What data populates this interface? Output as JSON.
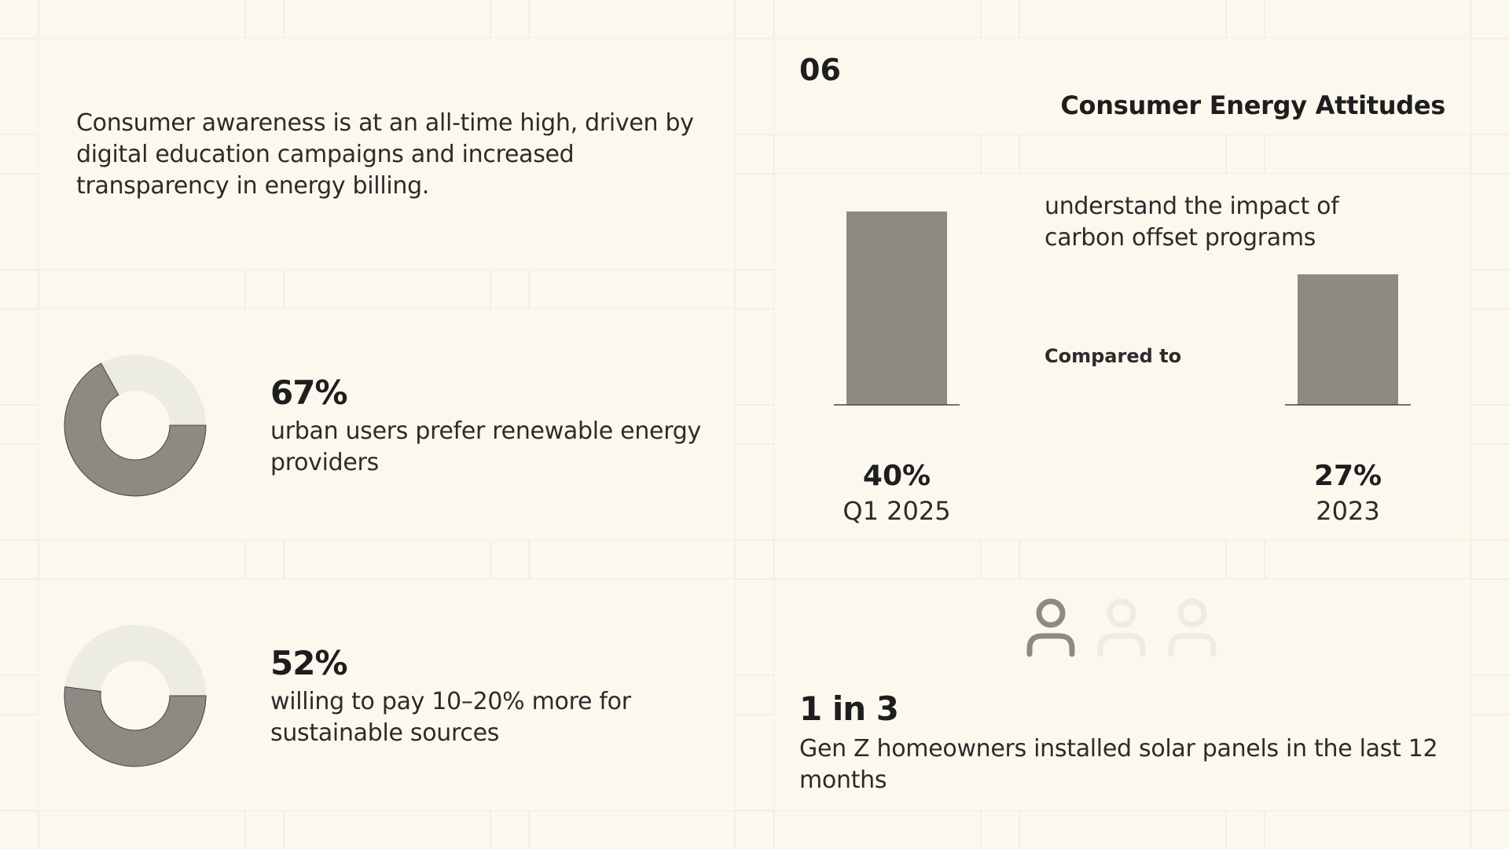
{
  "colors": {
    "background": "#fcf8ee",
    "grid_line": "#ebe5d6",
    "mark": "#8d8a83",
    "mark_light": "#ecebe4",
    "outline": "#444444"
  },
  "intro": {
    "text": "Consumer awareness is at an all-time high, driven by digital education campaigns and increased transparency in energy billing."
  },
  "header": {
    "slide_number": "06",
    "title": "Consumer Energy Attitudes"
  },
  "stats": [
    {
      "value": "67%",
      "description": "urban users prefer renewable energy providers"
    },
    {
      "value": "52%",
      "description": "willing to pay 10–20% more for sustainable sources"
    }
  ],
  "carbon": {
    "caption": "understand the impact of carbon offset programs",
    "compared_label": "Compared to"
  },
  "gen_z": {
    "value": "1 in 3",
    "description": "Gen Z homeowners installed solar panels in the last 12 months",
    "icons": [
      "person-icon",
      "person-icon",
      "person-icon"
    ]
  },
  "chart_data": [
    {
      "type": "pie",
      "variant": "donut",
      "values": [
        67,
        33
      ],
      "label": "67%"
    },
    {
      "type": "pie",
      "variant": "donut",
      "values": [
        52,
        48
      ],
      "label": "52%"
    },
    {
      "type": "bar",
      "categories": [
        "Q1 2025",
        "2023"
      ],
      "values": [
        40,
        27
      ],
      "data_labels": [
        "40%",
        "27%"
      ],
      "ylim": [
        0,
        40
      ]
    },
    {
      "type": "pictogram",
      "total": 3,
      "highlighted": 1
    }
  ]
}
